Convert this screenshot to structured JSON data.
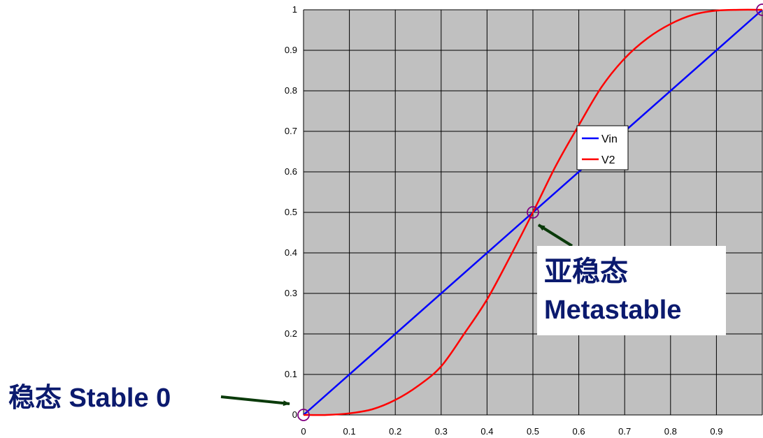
{
  "chart_data": {
    "type": "line",
    "xlim": [
      0,
      1
    ],
    "ylim": [
      0,
      1
    ],
    "grid": true,
    "x_ticks": [
      "0",
      "0.1",
      "0.2",
      "0.3",
      "0.4",
      "0.5",
      "0.6",
      "0.7",
      "0.8",
      "0.9"
    ],
    "y_ticks": [
      "0",
      "0.1",
      "0.2",
      "0.3",
      "0.4",
      "0.5",
      "0.6",
      "0.7",
      "0.8",
      "0.9",
      "1"
    ],
    "legend_position": "right",
    "series": [
      {
        "name": "Vin",
        "color": "#0000ff",
        "x": [
          0,
          1
        ],
        "y": [
          0,
          1
        ]
      },
      {
        "name": "V2",
        "color": "#ff0000",
        "x": [
          0,
          0.05,
          0.1,
          0.15,
          0.2,
          0.25,
          0.3,
          0.35,
          0.4,
          0.45,
          0.5,
          0.55,
          0.6,
          0.65,
          0.7,
          0.75,
          0.8,
          0.85,
          0.9,
          0.95,
          1.0
        ],
        "y": [
          0,
          0.0,
          0.004,
          0.014,
          0.037,
          0.072,
          0.12,
          0.2,
          0.285,
          0.39,
          0.5,
          0.615,
          0.715,
          0.81,
          0.88,
          0.93,
          0.965,
          0.988,
          0.998,
          1.0,
          1.0
        ]
      }
    ],
    "annotations": [
      {
        "id": "stable0",
        "text": "稳态 Stable 0",
        "x": 0,
        "y": 0
      },
      {
        "id": "metastable",
        "line1": "亚稳态",
        "line2": "Metastable",
        "x": 0.5,
        "y": 0.5
      },
      {
        "id": "stable1",
        "x": 1,
        "y": 1
      }
    ],
    "background_color": "#c0c0c0",
    "grid_color": "#000000",
    "marker_color": "#800080",
    "annotation_color": "#0b1a6e",
    "arrow_color": "#0a3a0a"
  }
}
